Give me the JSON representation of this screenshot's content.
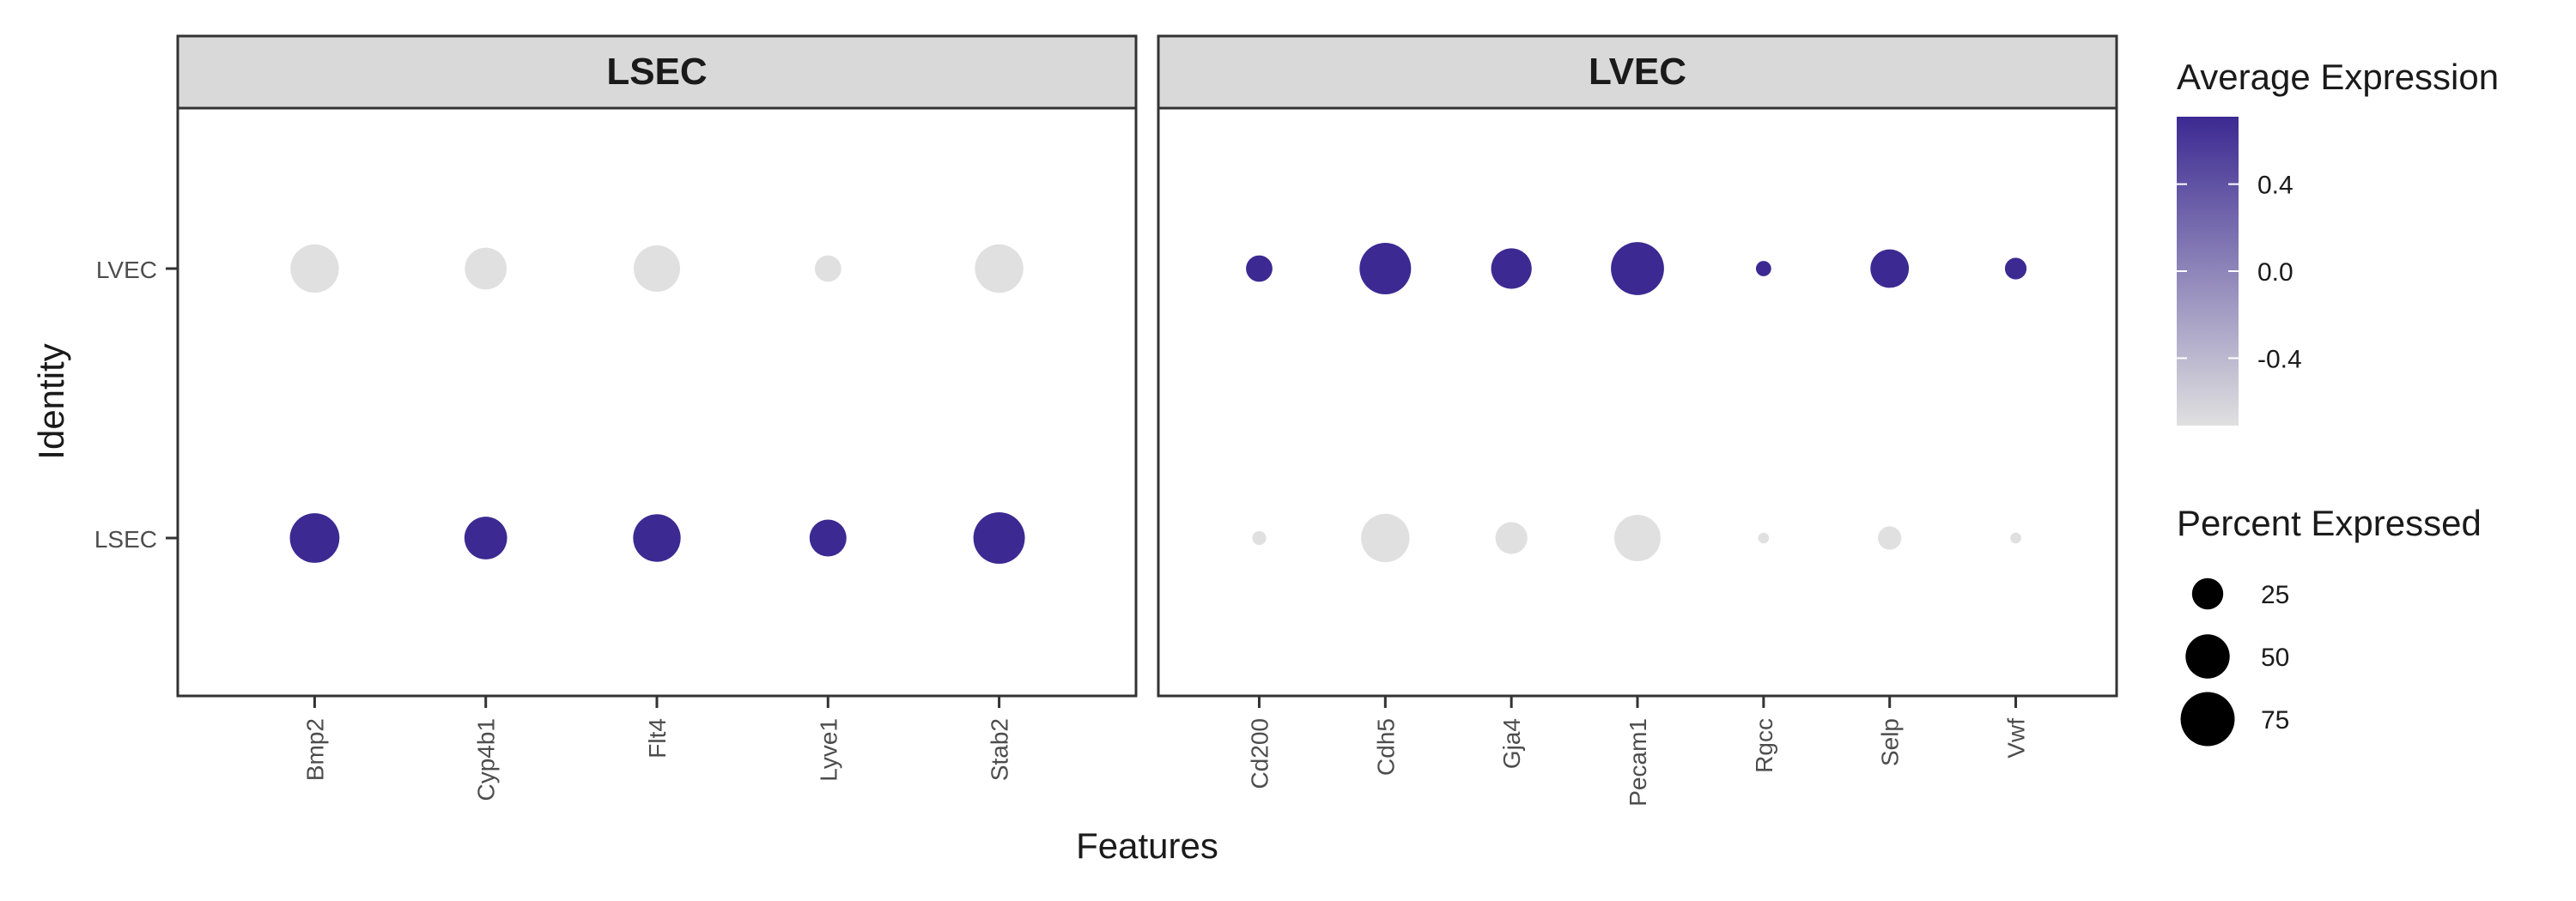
{
  "chart_data": {
    "type": "scatter",
    "subtype": "dot-plot",
    "xlabel": "Features",
    "ylabel": "Identity",
    "identities": [
      "LVEC",
      "LSEC"
    ],
    "panels": [
      {
        "title": "LSEC",
        "features": [
          "Bmp2",
          "Cyp4b1",
          "Flt4",
          "Lyve1",
          "Stab2"
        ],
        "points": [
          {
            "feature": "Bmp2",
            "identity": "LVEC",
            "avg_exp": -0.71,
            "pct": 60
          },
          {
            "feature": "Cyp4b1",
            "identity": "LVEC",
            "avg_exp": -0.71,
            "pct": 45
          },
          {
            "feature": "Flt4",
            "identity": "LVEC",
            "avg_exp": -0.71,
            "pct": 55
          },
          {
            "feature": "Lyve1",
            "identity": "LVEC",
            "avg_exp": -0.71,
            "pct": 18
          },
          {
            "feature": "Stab2",
            "identity": "LVEC",
            "avg_exp": -0.71,
            "pct": 60
          },
          {
            "feature": "Bmp2",
            "identity": "LSEC",
            "avg_exp": 0.71,
            "pct": 63
          },
          {
            "feature": "Cyp4b1",
            "identity": "LSEC",
            "avg_exp": 0.71,
            "pct": 47
          },
          {
            "feature": "Flt4",
            "identity": "LSEC",
            "avg_exp": 0.71,
            "pct": 58
          },
          {
            "feature": "Lyve1",
            "identity": "LSEC",
            "avg_exp": 0.71,
            "pct": 35
          },
          {
            "feature": "Stab2",
            "identity": "LSEC",
            "avg_exp": 0.71,
            "pct": 68
          }
        ]
      },
      {
        "title": "LVEC",
        "features": [
          "Cd200",
          "Cdh5",
          "Gja4",
          "Pecam1",
          "Rgcc",
          "Selp",
          "Vwf"
        ],
        "points": [
          {
            "feature": "Cd200",
            "identity": "LVEC",
            "avg_exp": 0.71,
            "pct": 18
          },
          {
            "feature": "Cdh5",
            "identity": "LVEC",
            "avg_exp": 0.71,
            "pct": 68
          },
          {
            "feature": "Gja4",
            "identity": "LVEC",
            "avg_exp": 0.71,
            "pct": 42
          },
          {
            "feature": "Pecam1",
            "identity": "LVEC",
            "avg_exp": 0.71,
            "pct": 72
          },
          {
            "feature": "Rgcc",
            "identity": "LVEC",
            "avg_exp": 0.71,
            "pct": 6
          },
          {
            "feature": "Selp",
            "identity": "LVEC",
            "avg_exp": 0.71,
            "pct": 38
          },
          {
            "feature": "Vwf",
            "identity": "LVEC",
            "avg_exp": 0.71,
            "pct": 12
          },
          {
            "feature": "Cd200",
            "identity": "LSEC",
            "avg_exp": -0.71,
            "pct": 5
          },
          {
            "feature": "Cdh5",
            "identity": "LSEC",
            "avg_exp": -0.71,
            "pct": 60
          },
          {
            "feature": "Gja4",
            "identity": "LSEC",
            "avg_exp": -0.71,
            "pct": 26
          },
          {
            "feature": "Pecam1",
            "identity": "LSEC",
            "avg_exp": -0.71,
            "pct": 55
          },
          {
            "feature": "Rgcc",
            "identity": "LSEC",
            "avg_exp": -0.71,
            "pct": 3
          },
          {
            "feature": "Selp",
            "identity": "LSEC",
            "avg_exp": -0.71,
            "pct": 14
          },
          {
            "feature": "Vwf",
            "identity": "LSEC",
            "avg_exp": -0.71,
            "pct": 3
          }
        ]
      }
    ],
    "color_legend": {
      "title": "Average Expression",
      "min": -0.71,
      "max": 0.71,
      "low_color": "#e0e0e0",
      "high_color": "#3c2a92",
      "breaks": [
        0.4,
        0.0,
        -0.4
      ],
      "break_labels": [
        "0.4",
        "0.0",
        "-0.4"
      ]
    },
    "size_legend": {
      "title": "Percent Expressed",
      "breaks": [
        25,
        50,
        75
      ],
      "break_labels": [
        "25",
        "50",
        "75"
      ]
    },
    "grid": false,
    "legend_position": "right"
  }
}
